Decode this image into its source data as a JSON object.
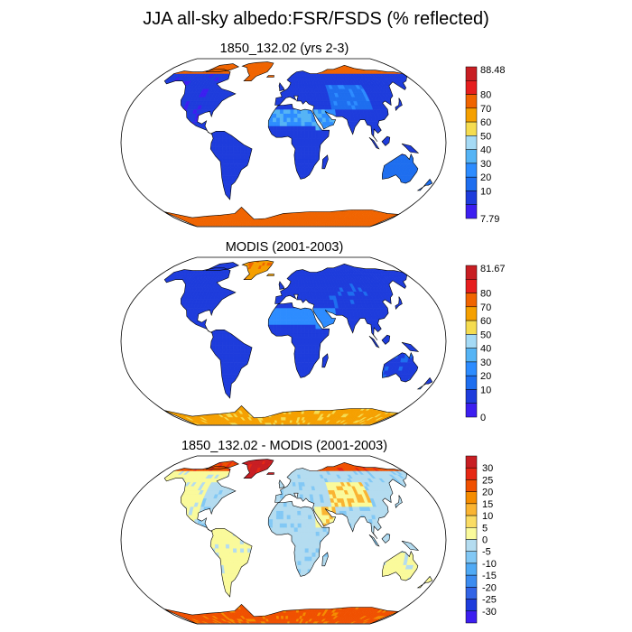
{
  "title": "JJA all-sky albedo:FSR/FSDS (% reflected)",
  "colors": {
    "ocean": "#ffffff",
    "outline": "#000000",
    "cb1": [
      "#3c1ef0",
      "#1e3cdc",
      "#1e6eef",
      "#2d8cff",
      "#55b4f5",
      "#a5daf5",
      "#f5dc50",
      "#f5a000",
      "#f06400",
      "#e61e1e",
      "#c81e23"
    ],
    "cb3": [
      "#3c1ef0",
      "#1e3cdc",
      "#3264e6",
      "#3c8cf0",
      "#50aaf5",
      "#82c8f5",
      "#b4dcf0",
      "#fafa9b",
      "#fadc64",
      "#fab432",
      "#f58c00",
      "#f05000",
      "#e62814",
      "#c81e23"
    ]
  },
  "chart_data": [
    {
      "type": "heatmap",
      "title": "1850_132.02 (yrs 2-3)",
      "colorbar": {
        "labels": [
          "7.79",
          "10",
          "20",
          "30",
          "40",
          "50",
          "60",
          "70",
          "80",
          "88.48"
        ],
        "min_label": "7.79",
        "max_label": "88.48"
      },
      "regions": {
        "north_america": 12,
        "eastern_north_america": 15,
        "greenland": 85,
        "south_america": 14,
        "sahara": 40,
        "arabia": 40,
        "africa_south": 17,
        "europe": 14,
        "siberia": 14,
        "arctic_coast": 85,
        "central_asia": 28,
        "east_asia": 14,
        "australia": 24,
        "antarctica": 85
      }
    },
    {
      "type": "heatmap",
      "title": "MODIS (2001-2003)",
      "colorbar": {
        "labels": [
          "0",
          "10",
          "20",
          "30",
          "40",
          "50",
          "60",
          "70",
          "80",
          "81.67"
        ],
        "min_label": "0",
        "max_label": "81.67"
      },
      "regions": {
        "north_america": 14,
        "eastern_north_america": 14,
        "greenland": 78,
        "south_america": 14,
        "sahara": 36,
        "arabia": 36,
        "africa_south": 16,
        "europe": 14,
        "siberia": 14,
        "arctic_coast": 16,
        "central_asia": 18,
        "east_asia": 14,
        "australia": 18,
        "antarctica": 72
      }
    },
    {
      "type": "heatmap",
      "title": "1850_132.02 - MODIS (2001-2003)",
      "colorbar": {
        "labels": [
          "-30",
          "-25",
          "-20",
          "-15",
          "-10",
          "-5",
          "0",
          "5",
          "10",
          "15",
          "20",
          "25",
          "30"
        ]
      },
      "regions": {
        "north_america": 2,
        "eastern_north_america": -3,
        "greenland": 27,
        "south_america": 2,
        "sahara": -3,
        "arabia": 4,
        "africa_south": -3,
        "europe": -3,
        "siberia": -3,
        "arctic_coast": 18,
        "central_asia": 4,
        "east_asia": -3,
        "australia": 2,
        "antarctica": 17
      }
    }
  ]
}
